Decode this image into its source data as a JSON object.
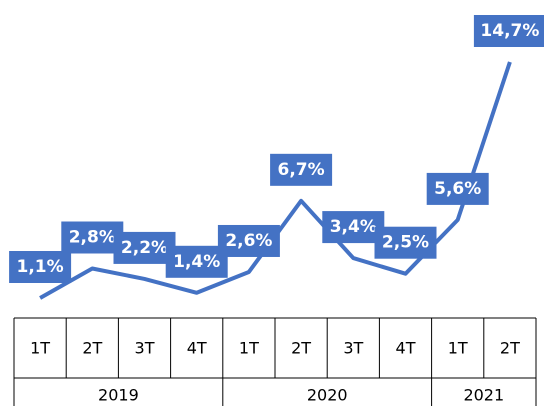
{
  "chart_data": {
    "type": "line",
    "color": "#4472c4",
    "groups": [
      {
        "name": "2019",
        "categories": [
          "1T",
          "2T",
          "3T",
          "4T"
        ]
      },
      {
        "name": "2020",
        "categories": [
          "1T",
          "2T",
          "3T",
          "4T"
        ]
      },
      {
        "name": "2021",
        "categories": [
          "1T",
          "2T"
        ]
      }
    ],
    "values": [
      1.1,
      2.8,
      2.2,
      1.4,
      2.6,
      6.7,
      3.4,
      2.5,
      5.6,
      14.7
    ],
    "value_labels": [
      "1,1%",
      "2,8%",
      "2,2%",
      "1,4%",
      "2,6%",
      "6,7%",
      "3,4%",
      "2,5%",
      "5,6%",
      "14,7%"
    ]
  }
}
